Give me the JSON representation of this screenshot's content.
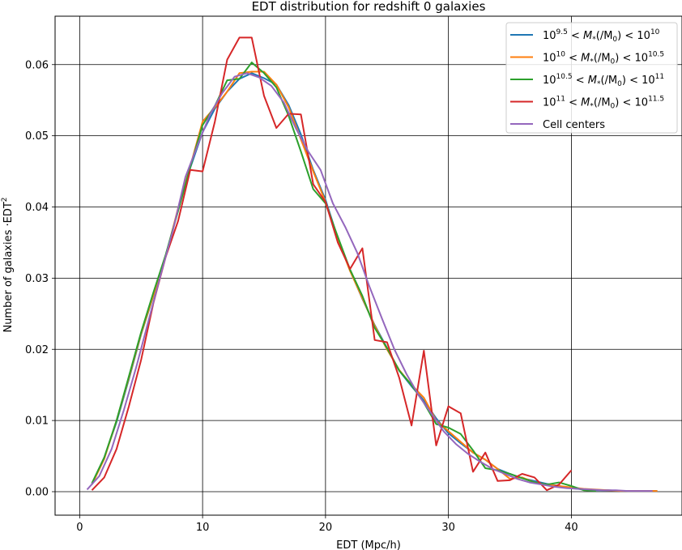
{
  "chart_data": {
    "type": "line",
    "title": "EDT distribution for redshift 0 galaxies",
    "xlabel": "EDT (Mpc/h)",
    "ylabel": "Number of galaxies ·EDT",
    "ylabel_superscript": "2",
    "xlim": [
      -2,
      49
    ],
    "ylim": [
      -0.0033,
      0.0668
    ],
    "xticks": [
      0,
      10,
      20,
      30,
      40
    ],
    "yticks": [
      0.0,
      0.01,
      0.02,
      0.03,
      0.04,
      0.05,
      0.06
    ],
    "xtick_labels": [
      "0",
      "10",
      "20",
      "30",
      "40"
    ],
    "ytick_labels": [
      "0.00",
      "0.01",
      "0.02",
      "0.03",
      "0.04",
      "0.05",
      "0.06"
    ],
    "grid": true,
    "legend_position": "top-right",
    "series": [
      {
        "name": "10^9.5 < M*(/M0) < 10^10",
        "legend": {
          "base1": "10",
          "exp1": "9.5",
          "mid": " < M",
          "sub": "*",
          "paren": "(/M",
          "sub2": "0",
          "close": ") < 10",
          "exp2": "10"
        },
        "color": "#1f77b4",
        "x": [
          1,
          2,
          3,
          4,
          5,
          6,
          7,
          8,
          9,
          10,
          11,
          12,
          13,
          14,
          15,
          16,
          17,
          18,
          19,
          20,
          21,
          22,
          23,
          24,
          25,
          26,
          27,
          28,
          29,
          30,
          31,
          32,
          33,
          34,
          35,
          36,
          37,
          38,
          39,
          40,
          41,
          42,
          43,
          44,
          45,
          46,
          47
        ],
        "y": [
          0.0011,
          0.0048,
          0.0098,
          0.0158,
          0.0221,
          0.0275,
          0.0332,
          0.0396,
          0.0455,
          0.0505,
          0.0538,
          0.0562,
          0.058,
          0.0588,
          0.0581,
          0.0572,
          0.0543,
          0.0502,
          0.0452,
          0.041,
          0.0356,
          0.0311,
          0.0271,
          0.0234,
          0.0202,
          0.017,
          0.0148,
          0.0128,
          0.0103,
          0.0082,
          0.0068,
          0.0055,
          0.0045,
          0.0032,
          0.0025,
          0.0019,
          0.0015,
          0.0011,
          0.0008,
          0.0005,
          0.0003,
          0.0002,
          0.0002,
          0.0001,
          0.0001,
          0.0001,
          0.0001
        ]
      },
      {
        "name": "10^10 < M*(/M0) < 10^10.5",
        "legend": {
          "base1": "10",
          "exp1": "10",
          "mid": " < M",
          "sub": "*",
          "paren": "(/M",
          "sub2": "0",
          "close": ") < 10",
          "exp2": "10.5"
        },
        "color": "#ff7f0e",
        "x": [
          1,
          2,
          3,
          4,
          5,
          6,
          7,
          8,
          9,
          10,
          11,
          12,
          13,
          14,
          15,
          16,
          17,
          18,
          19,
          20,
          21,
          22,
          23,
          24,
          25,
          26,
          27,
          28,
          29,
          30,
          31,
          32,
          33,
          34,
          35,
          36,
          37,
          38,
          39,
          40,
          41,
          42,
          43,
          44,
          45,
          46,
          47
        ],
        "y": [
          0.001,
          0.0046,
          0.01,
          0.016,
          0.0222,
          0.0276,
          0.033,
          0.0398,
          0.0457,
          0.052,
          0.054,
          0.0562,
          0.0588,
          0.059,
          0.059,
          0.0572,
          0.054,
          0.0495,
          0.045,
          0.0407,
          0.0355,
          0.031,
          0.0272,
          0.0233,
          0.02,
          0.0171,
          0.015,
          0.0132,
          0.01,
          0.0085,
          0.007,
          0.0055,
          0.0045,
          0.0032,
          0.0018,
          0.002,
          0.0013,
          0.001,
          0.0008,
          0.0006,
          0.0004,
          0.0003,
          0.0002,
          0.0001,
          0.0001,
          0.0001,
          0.0001
        ]
      },
      {
        "name": "10^10.5 < M*(/M0) < 10^11",
        "legend": {
          "base1": "10",
          "exp1": "10.5",
          "mid": " < M",
          "sub": "*",
          "paren": "(/M",
          "sub2": "0",
          "close": ") < 10",
          "exp2": "11"
        },
        "color": "#2ca02c",
        "x": [
          1,
          2,
          3,
          4,
          5,
          6,
          7,
          8,
          9,
          10,
          11,
          12,
          13,
          14,
          15,
          16,
          17,
          18,
          19,
          20,
          21,
          22,
          23,
          24,
          25,
          26,
          27,
          28,
          29,
          30,
          31,
          32,
          33,
          34,
          35,
          36,
          37,
          38,
          39,
          40,
          41,
          42
        ],
        "y": [
          0.0012,
          0.0048,
          0.01,
          0.0162,
          0.0224,
          0.028,
          0.0333,
          0.0394,
          0.0456,
          0.0515,
          0.0542,
          0.0578,
          0.058,
          0.0603,
          0.0588,
          0.0568,
          0.0528,
          0.0478,
          0.0425,
          0.0405,
          0.0358,
          0.0312,
          0.0275,
          0.023,
          0.0202,
          0.017,
          0.015,
          0.0125,
          0.0095,
          0.009,
          0.0081,
          0.0058,
          0.0033,
          0.003,
          0.0025,
          0.0019,
          0.0013,
          0.001,
          0.0013,
          0.0008,
          0.0002,
          0.0001
        ]
      },
      {
        "name": "10^11 < M*(/M0) < 10^11.5",
        "legend": {
          "base1": "10",
          "exp1": "11",
          "mid": " < M",
          "sub": "*",
          "paren": "(/M",
          "sub2": "0",
          "close": ") < 10",
          "exp2": "11.5"
        },
        "color": "#d62728",
        "x": [
          1,
          2,
          3,
          4,
          5,
          6,
          7,
          8,
          9,
          10,
          11,
          12,
          13,
          14,
          15,
          16,
          17,
          18,
          19,
          20,
          21,
          22,
          23,
          24,
          25,
          26,
          27,
          28,
          29,
          30,
          31,
          32,
          33,
          34,
          35,
          36,
          37,
          38,
          39,
          40
        ],
        "y": [
          0.0002,
          0.002,
          0.006,
          0.012,
          0.0185,
          0.0265,
          0.033,
          0.038,
          0.0452,
          0.045,
          0.052,
          0.0607,
          0.0638,
          0.0638,
          0.0556,
          0.0511,
          0.0531,
          0.053,
          0.0432,
          0.0407,
          0.035,
          0.0313,
          0.0342,
          0.0213,
          0.021,
          0.016,
          0.0093,
          0.0198,
          0.0065,
          0.012,
          0.011,
          0.0028,
          0.0055,
          0.0015,
          0.0016,
          0.0025,
          0.002,
          0.0002,
          0.001,
          0.003
        ]
      },
      {
        "name": "Cell centers",
        "legend": {
          "plain": "Cell centers"
        },
        "color": "#9467bd",
        "x": [
          0.6,
          1.6,
          2.6,
          3.6,
          4.6,
          5.6,
          6.6,
          7.6,
          8.6,
          9.6,
          10.6,
          11.6,
          12.6,
          13.6,
          14.6,
          15.6,
          16.6,
          17.6,
          18.6,
          19.6,
          20.6,
          21.6,
          22.6,
          23.6,
          24.6,
          25.6,
          26.6,
          27.6,
          28.6,
          29.6,
          30.6,
          31.6,
          32.6,
          33.6,
          34.6,
          35.6,
          36.6,
          37.6,
          38.6,
          39.6,
          40.6,
          41.6,
          42.6,
          43.6,
          44.6,
          45.6,
          46.6
        ],
        "y": [
          0.0003,
          0.0022,
          0.006,
          0.0115,
          0.0175,
          0.024,
          0.0305,
          0.0368,
          0.0442,
          0.0487,
          0.053,
          0.056,
          0.0583,
          0.0588,
          0.0582,
          0.057,
          0.0547,
          0.051,
          0.0478,
          0.0452,
          0.0405,
          0.0372,
          0.0335,
          0.0287,
          0.0243,
          0.02,
          0.0165,
          0.0135,
          0.011,
          0.0085,
          0.0067,
          0.0053,
          0.0042,
          0.0032,
          0.0025,
          0.0018,
          0.0013,
          0.001,
          0.0007,
          0.0005,
          0.0004,
          0.0003,
          0.0002,
          0.0002,
          0.0001,
          0.0001,
          0.0001
        ]
      }
    ]
  }
}
